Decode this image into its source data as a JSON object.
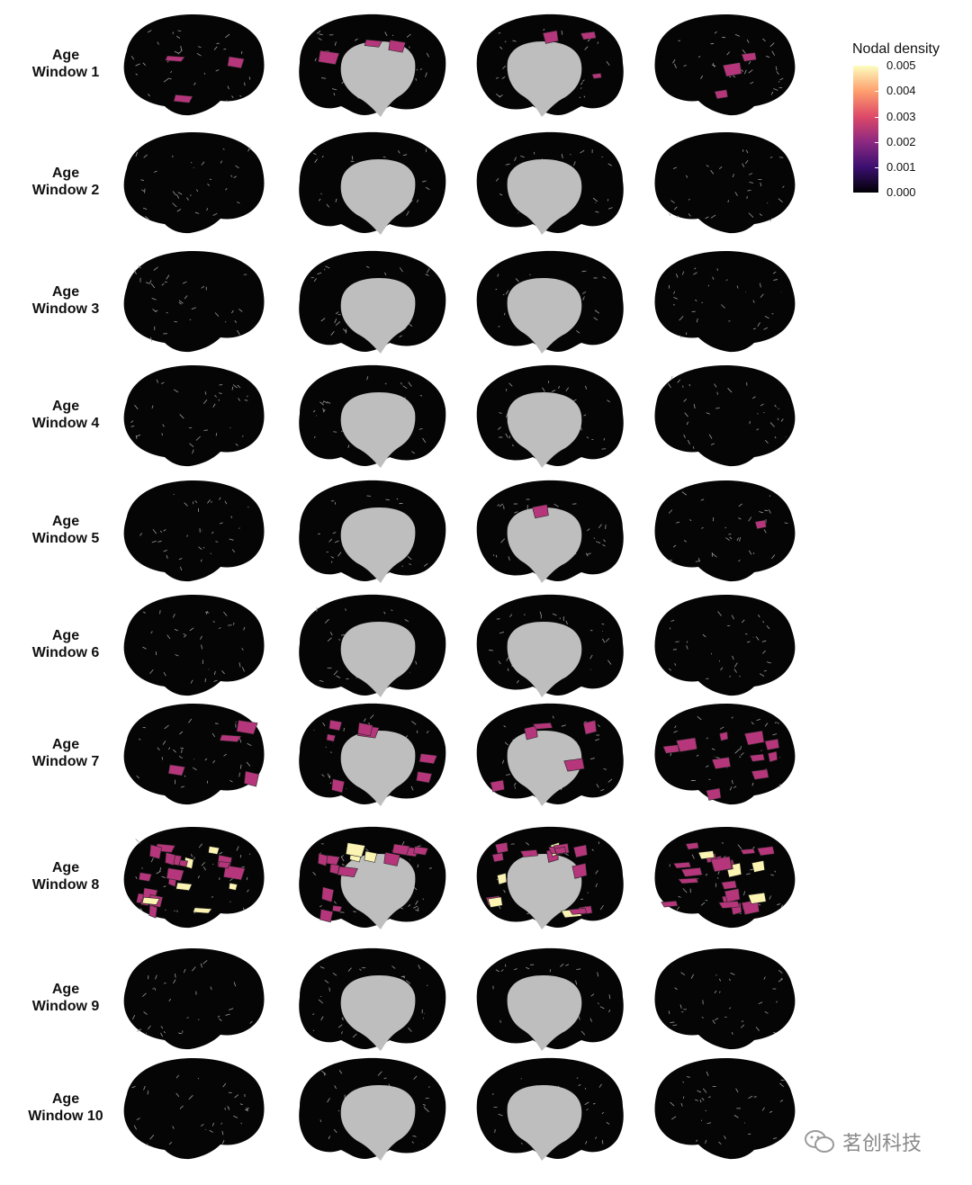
{
  "figure": {
    "rows": [
      {
        "label_line1": "Age",
        "label_line2": "Window 1",
        "views": [
          3,
          3,
          3,
          3
        ]
      },
      {
        "label_line1": "Age",
        "label_line2": "Window 2",
        "views": [
          0,
          0,
          0,
          0
        ]
      },
      {
        "label_line1": "Age",
        "label_line2": "Window 3",
        "views": [
          0,
          0,
          0,
          0
        ]
      },
      {
        "label_line1": "Age",
        "label_line2": "Window 4",
        "views": [
          0,
          0,
          0,
          0
        ]
      },
      {
        "label_line1": "Age",
        "label_line2": "Window 5",
        "views": [
          0,
          0,
          1,
          1
        ]
      },
      {
        "label_line1": "Age",
        "label_line2": "Window 6",
        "views": [
          0,
          0,
          0,
          0
        ]
      },
      {
        "label_line1": "Age",
        "label_line2": "Window 7",
        "views": [
          4,
          7,
          5,
          10
        ]
      },
      {
        "label_line1": "Age",
        "label_line2": "Window 8",
        "views": [
          22,
          14,
          16,
          22
        ]
      },
      {
        "label_line1": "Age",
        "label_line2": "Window 9",
        "views": [
          0,
          0,
          0,
          0
        ]
      },
      {
        "label_line1": "Age",
        "label_line2": "Window 10",
        "views": [
          0,
          0,
          0,
          0
        ]
      }
    ],
    "view_types": [
      "lateral-left",
      "medial-left",
      "medial-right",
      "lateral-right"
    ]
  },
  "legend": {
    "title": "Nodal density",
    "ticks": [
      "0.005",
      "0.004",
      "0.003",
      "0.002",
      "0.001",
      "0.000"
    ],
    "colors": [
      "#000004",
      "#3b0f70",
      "#8c2981",
      "#de4968",
      "#fe9f6d",
      "#fcfdbf"
    ],
    "brain_color": "#050505",
    "medial_wall_color": "#bebebe",
    "mid_density_color": "#b5367a",
    "high_density_color": "#fbf4b3"
  },
  "watermark": {
    "text": "茗创科技",
    "icon": "wechat-icon"
  }
}
